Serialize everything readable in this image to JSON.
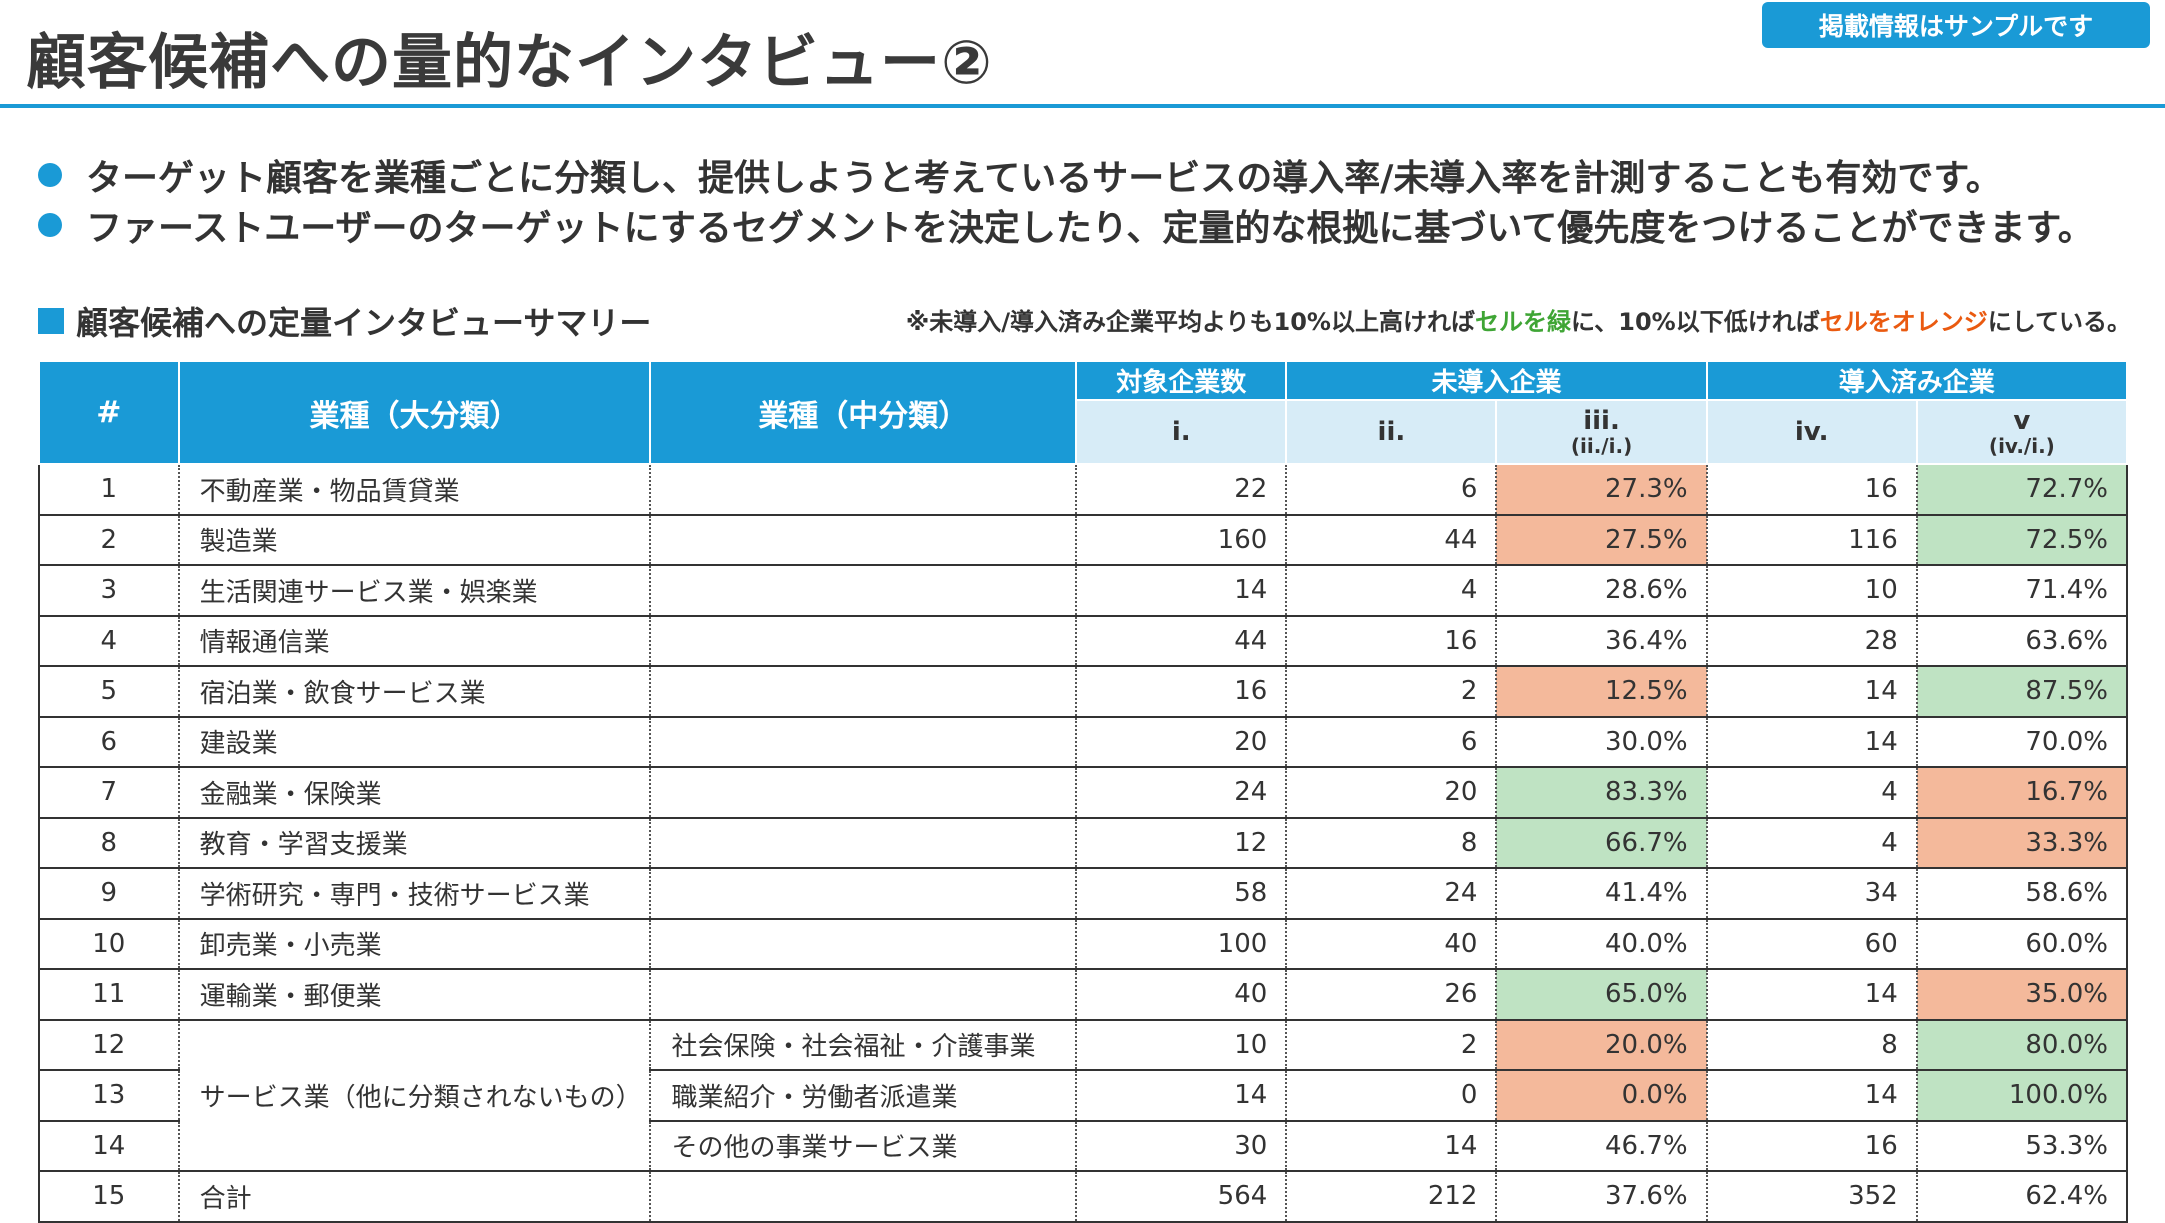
{
  "page": {
    "title": "顧客候補への量的なインタビュー②",
    "badge": "掲載情報はサンプルです",
    "bullets": [
      "ターゲット顧客を業種ごとに分類し、提供しようと考えているサービスの導入率/未導入率を計測することも有効です。",
      "ファーストユーザーのターゲットにするセグメントを決定したり、定量的な根拠に基づいて優先度をつけることができます。"
    ]
  },
  "section": {
    "title": "顧客候補への定量インタビューサマリー",
    "note_prefix": "※未導入/導入済み企業平均よりも10%以上高ければ",
    "note_green": "セルを緑",
    "note_mid": "に、10%以下低ければ",
    "note_orange": "セルをオレンジ",
    "note_suffix": "にしている。"
  },
  "colors": {
    "accent": "#1a9ad6",
    "green_cell": "#bfe3c3",
    "orange_cell": "#f4b99b",
    "subheader": "#d7ecf7"
  },
  "table": {
    "headers": {
      "no": "#",
      "major": "業種（大分類）",
      "middle": "業種（中分類）",
      "target_group": "対象企業数",
      "not_adopted_group": "未導入企業",
      "adopted_group": "導入済み企業",
      "col_i": "i.",
      "col_ii": "ii.",
      "col_iii": "iii.",
      "col_iii_sub": "(ii./i.)",
      "col_iv": "iv.",
      "col_v": "v",
      "col_v_sub": "(iv./i.)"
    },
    "rows": [
      {
        "no": "1",
        "major": "不動産業・物品賃貸業",
        "middle": "",
        "i": "22",
        "ii": "6",
        "iii": "27.3%",
        "iv": "16",
        "v": "72.7%",
        "iii_color": "orange",
        "v_color": "green"
      },
      {
        "no": "2",
        "major": "製造業",
        "middle": "",
        "i": "160",
        "ii": "44",
        "iii": "27.5%",
        "iv": "116",
        "v": "72.5%",
        "iii_color": "orange",
        "v_color": "green"
      },
      {
        "no": "3",
        "major": "生活関連サービス業・娯楽業",
        "middle": "",
        "i": "14",
        "ii": "4",
        "iii": "28.6%",
        "iv": "10",
        "v": "71.4%",
        "iii_color": "",
        "v_color": ""
      },
      {
        "no": "4",
        "major": "情報通信業",
        "middle": "",
        "i": "44",
        "ii": "16",
        "iii": "36.4%",
        "iv": "28",
        "v": "63.6%",
        "iii_color": "",
        "v_color": ""
      },
      {
        "no": "5",
        "major": "宿泊業・飲食サービス業",
        "middle": "",
        "i": "16",
        "ii": "2",
        "iii": "12.5%",
        "iv": "14",
        "v": "87.5%",
        "iii_color": "orange",
        "v_color": "green"
      },
      {
        "no": "6",
        "major": "建設業",
        "middle": "",
        "i": "20",
        "ii": "6",
        "iii": "30.0%",
        "iv": "14",
        "v": "70.0%",
        "iii_color": "",
        "v_color": ""
      },
      {
        "no": "7",
        "major": "金融業・保険業",
        "middle": "",
        "i": "24",
        "ii": "20",
        "iii": "83.3%",
        "iv": "4",
        "v": "16.7%",
        "iii_color": "green",
        "v_color": "orange"
      },
      {
        "no": "8",
        "major": "教育・学習支援業",
        "middle": "",
        "i": "12",
        "ii": "8",
        "iii": "66.7%",
        "iv": "4",
        "v": "33.3%",
        "iii_color": "green",
        "v_color": "orange"
      },
      {
        "no": "9",
        "major": "学術研究・専門・技術サービス業",
        "middle": "",
        "i": "58",
        "ii": "24",
        "iii": "41.4%",
        "iv": "34",
        "v": "58.6%",
        "iii_color": "",
        "v_color": ""
      },
      {
        "no": "10",
        "major": "卸売業・小売業",
        "middle": "",
        "i": "100",
        "ii": "40",
        "iii": "40.0%",
        "iv": "60",
        "v": "60.0%",
        "iii_color": "",
        "v_color": ""
      },
      {
        "no": "11",
        "major": "運輸業・郵便業",
        "middle": "",
        "i": "40",
        "ii": "26",
        "iii": "65.0%",
        "iv": "14",
        "v": "35.0%",
        "iii_color": "green",
        "v_color": "orange"
      },
      {
        "no": "12",
        "major": "サービス業（他に分類されないもの）",
        "middle": "社会保険・社会福祉・介護事業",
        "i": "10",
        "ii": "2",
        "iii": "20.0%",
        "iv": "8",
        "v": "80.0%",
        "iii_color": "orange",
        "v_color": "green"
      },
      {
        "no": "13",
        "major": "",
        "middle": "職業紹介・労働者派遣業",
        "i": "14",
        "ii": "0",
        "iii": "0.0%",
        "iv": "14",
        "v": "100.0%",
        "iii_color": "orange",
        "v_color": "green"
      },
      {
        "no": "14",
        "major": "",
        "middle": "その他の事業サービス業",
        "i": "30",
        "ii": "14",
        "iii": "46.7%",
        "iv": "16",
        "v": "53.3%",
        "iii_color": "",
        "v_color": ""
      },
      {
        "no": "15",
        "major": "合計",
        "middle": "",
        "i": "564",
        "ii": "212",
        "iii": "37.6%",
        "iv": "352",
        "v": "62.4%",
        "iii_color": "",
        "v_color": ""
      }
    ]
  }
}
